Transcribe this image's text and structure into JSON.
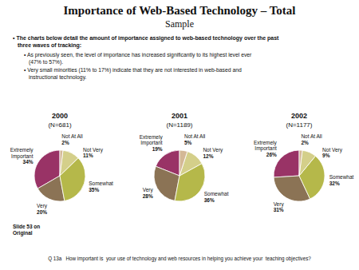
{
  "title": "Importance of Web-Based Technology – Total\nSample",
  "annotations": [
    "• The charts below detail the amount of importance assigned to web-based technology over the past\nthree waves of tracking:",
    "• As previously seen, the level of importance has increased significantly to its highest level ever\n(47% to 57%).",
    "• Very small minorities (11% to 17%) indicate that they are not interested in web-based and\ninstructional technology.",
    "Slide 53 on\nOriginal",
    "Q 13a   How important is  your use of technology and web resources in helping you achieve your  teaching objectives?"
  ],
  "chart_data": [
    {
      "type": "pie",
      "title": "2000",
      "subtitle": "(N=681)",
      "categories": [
        "Extremely\nImportant",
        "Very",
        "Somewhat",
        "Not Very",
        "Not At All"
      ],
      "values": [
        34,
        20,
        35,
        11,
        2
      ],
      "value_labels": [
        "34%",
        "20%",
        "35%",
        "11%",
        "2%"
      ],
      "data_labels": true,
      "colors": [
        "#993366",
        "#8B7355",
        "#B5B84A",
        "#D4CF8A",
        "#D4B896"
      ]
    },
    {
      "type": "pie",
      "title": "2001",
      "subtitle": "(N=1189)",
      "categories": [
        "Extremely\nImportant",
        "Very",
        "Somewhat",
        "Not Very",
        "Not At All"
      ],
      "values": [
        19,
        28,
        36,
        12,
        5
      ],
      "value_labels": [
        "19%",
        "28%",
        "36%",
        "12%",
        "5%"
      ],
      "data_labels": true,
      "colors": [
        "#993366",
        "#8B7355",
        "#B5B84A",
        "#D4CF8A",
        "#D4B896"
      ]
    },
    {
      "type": "pie",
      "title": "2002",
      "subtitle": "(N=1177)",
      "categories": [
        "Extremely\nImportant",
        "Very",
        "Somewhat",
        "Not Very",
        "Not At All"
      ],
      "values": [
        26,
        31,
        32,
        9,
        2
      ],
      "value_labels": [
        "26%",
        "31%",
        "32%",
        "9%",
        "2%"
      ],
      "data_labels": true,
      "colors": [
        "#993366",
        "#8B7355",
        "#B5B84A",
        "#D4CF8A",
        "#D4B896"
      ]
    }
  ]
}
